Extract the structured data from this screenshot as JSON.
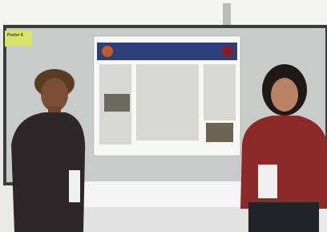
{
  "sign": {
    "label": "Poster 8"
  }
}
